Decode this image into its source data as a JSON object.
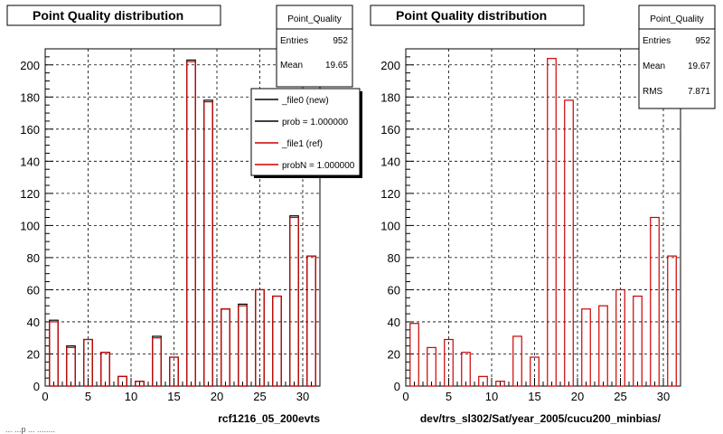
{
  "bottom_fragment": "... ...p ... ........",
  "chart_data": [
    {
      "type": "bar",
      "title": "Point Quality distribution",
      "xlabel": "rcf1216_05_200evts",
      "xlim": [
        0,
        32
      ],
      "ylim": [
        0,
        210
      ],
      "x_ticks": [
        0,
        5,
        10,
        15,
        20,
        25,
        30
      ],
      "y_ticks": [
        0,
        20,
        40,
        60,
        80,
        100,
        120,
        140,
        160,
        180,
        200
      ],
      "grid": true,
      "bins": [
        1,
        3,
        5,
        7,
        9,
        11,
        13,
        15,
        17,
        19,
        21,
        23,
        25,
        27,
        29,
        31
      ],
      "series": [
        {
          "name": "_file0 (new)",
          "color": "#000000",
          "values": [
            41,
            25,
            29,
            21,
            6,
            3,
            31,
            18,
            203,
            178,
            48,
            51,
            60,
            56,
            106,
            81
          ]
        },
        {
          "name": "_file1 (ref)",
          "color": "#cc0000",
          "values": [
            40,
            24,
            29,
            21,
            6,
            3,
            30,
            18,
            202,
            177,
            48,
            50,
            60,
            56,
            105,
            81
          ]
        }
      ],
      "stats": {
        "title": "Point_Quality",
        "rows": [
          {
            "label": "Entries",
            "value": "952"
          },
          {
            "label": "Mean",
            "value": "19.65"
          }
        ]
      },
      "legend": {
        "position": "top-right",
        "entries": [
          {
            "label": "_file0 (new)",
            "color": "#000000"
          },
          {
            "label": "prob = 1.000000",
            "color": "#000000"
          },
          {
            "label": "_file1 (ref)",
            "color": "#cc0000"
          },
          {
            "label": "probN = 1.000000",
            "color": "#cc0000"
          }
        ]
      }
    },
    {
      "type": "bar",
      "title": "Point Quality distribution",
      "xlabel": "dev/trs_sl302/Sat/year_2005/cucu200_minbias/",
      "xlim": [
        0,
        32
      ],
      "ylim": [
        0,
        210
      ],
      "x_ticks": [
        0,
        5,
        10,
        15,
        20,
        25,
        30
      ],
      "y_ticks": [
        0,
        20,
        40,
        60,
        80,
        100,
        120,
        140,
        160,
        180,
        200
      ],
      "grid": true,
      "bins": [
        1,
        3,
        5,
        7,
        9,
        11,
        13,
        15,
        17,
        19,
        21,
        23,
        25,
        27,
        29,
        31
      ],
      "series": [
        {
          "color": "#cc0000",
          "values": [
            39,
            24,
            29,
            21,
            6,
            3,
            31,
            18,
            204,
            178,
            48,
            50,
            60,
            56,
            105,
            81
          ]
        }
      ],
      "stats": {
        "title": "Point_Quality",
        "rows": [
          {
            "label": "Entries",
            "value": "952"
          },
          {
            "label": "Mean",
            "value": "19.67"
          },
          {
            "label": "RMS",
            "value": "7.871"
          }
        ]
      }
    }
  ]
}
